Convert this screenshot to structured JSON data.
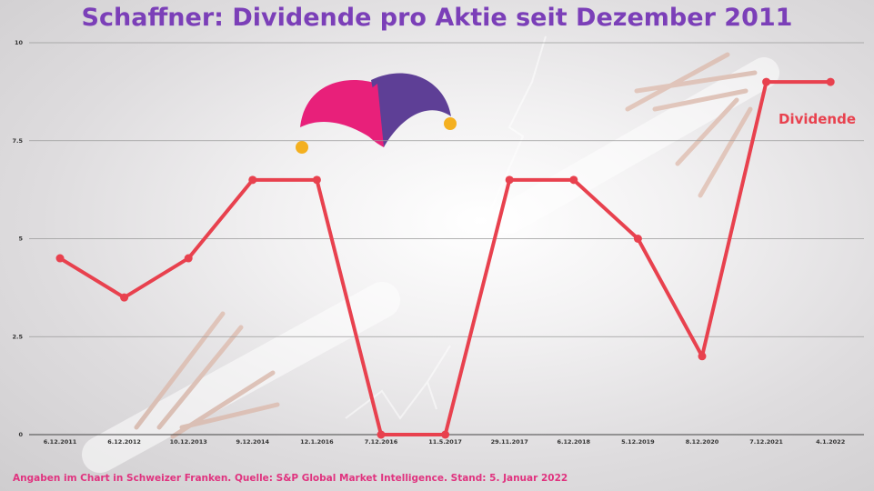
{
  "title": "Schaffner: Dividende pro Aktie seit Dezember 2011",
  "footnote": "Angaben im Chart in Schweizer Franken. Quelle:  S&P Global Market Intelligence. Stand: 5. Januar 2022",
  "colors": {
    "title": "#7b3fb8",
    "line": "#e8414e",
    "footnote": "#e0337f",
    "jester_pink": "#e8207a",
    "jester_purple": "#5e3f96",
    "jester_bell": "#f4b020"
  },
  "decoration_icon": "jester-hat-icon",
  "chart_data": {
    "type": "line",
    "categories": [
      "6.12.2011",
      "6.12.2012",
      "10.12.2013",
      "9.12.2014",
      "12.1.2016",
      "7.12.2016",
      "11.5.2017",
      "29.11.2017",
      "6.12.2018",
      "5.12.2019",
      "8.12.2020",
      "7.12.2021",
      "4.1.2022"
    ],
    "series": [
      {
        "name": "Dividende",
        "values": [
          4.5,
          3.5,
          4.5,
          6.5,
          6.5,
          0,
          0,
          6.5,
          6.5,
          5,
          2,
          9,
          9
        ]
      }
    ],
    "yticks": [
      "0",
      "2.5",
      "5",
      "7.5",
      "10"
    ],
    "ylim": [
      0,
      10
    ],
    "grid": true,
    "legend": "right"
  }
}
